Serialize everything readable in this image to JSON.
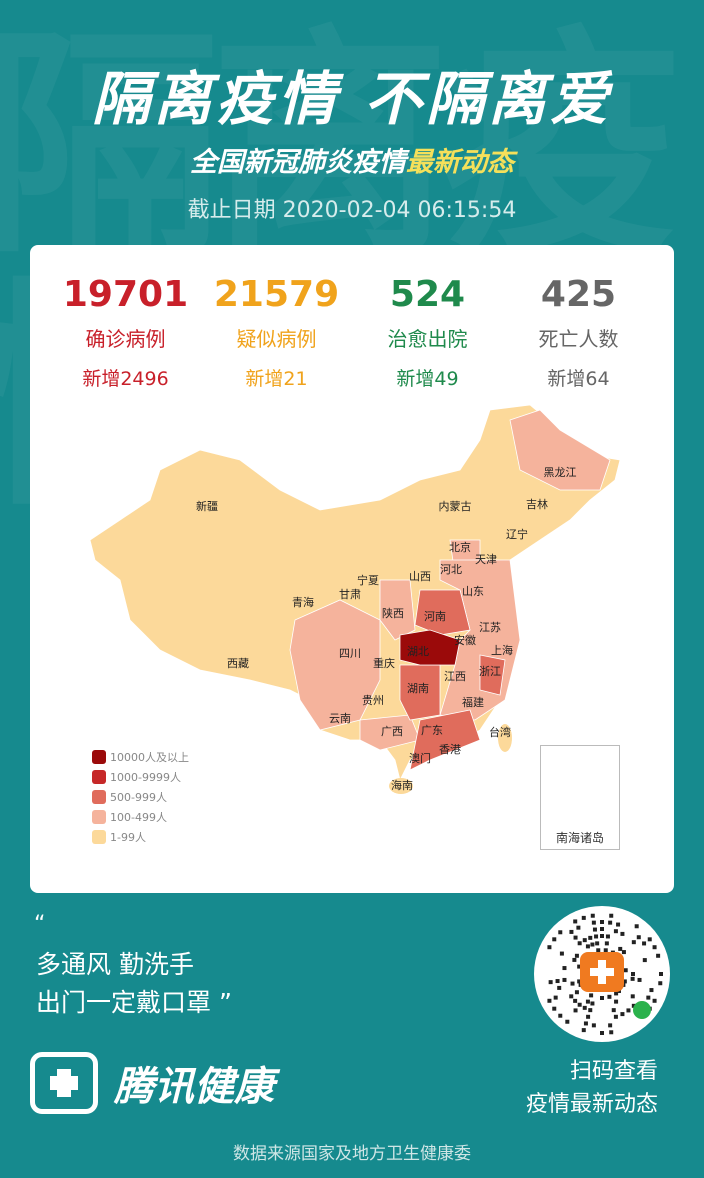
{
  "header": {
    "title": "隔离疫情 不隔离爱",
    "subtitle_a": "全国新冠肺炎疫情",
    "subtitle_b": "最新动态",
    "date": "截止日期 2020-02-04 06:15:54"
  },
  "stats": [
    {
      "value": "19701",
      "label": "确诊病例",
      "delta": "新增2496",
      "color": "#c8202a"
    },
    {
      "value": "21579",
      "label": "疑似病例",
      "delta": "新增21",
      "color": "#f0a31c"
    },
    {
      "value": "524",
      "label": "治愈出院",
      "delta": "新增49",
      "color": "#1f8a4c"
    },
    {
      "value": "425",
      "label": "死亡人数",
      "delta": "新增64",
      "color": "#666666"
    }
  ],
  "legend": [
    {
      "label": "10000人及以上",
      "color": "#9b0a0a"
    },
    {
      "label": "1000-9999人",
      "color": "#c62828"
    },
    {
      "label": "500-999人",
      "color": "#e06c5c"
    },
    {
      "label": "100-499人",
      "color": "#f5b39c"
    },
    {
      "label": "1-99人",
      "color": "#fcd99a"
    }
  ],
  "provinces": [
    {
      "name": "黑龙江",
      "level": 3
    },
    {
      "name": "吉林",
      "level": 4
    },
    {
      "name": "辽宁",
      "level": 4
    },
    {
      "name": "内蒙古",
      "level": 4
    },
    {
      "name": "新疆",
      "level": 4
    },
    {
      "name": "北京",
      "level": 3
    },
    {
      "name": "天津",
      "level": 4
    },
    {
      "name": "河北",
      "level": 3
    },
    {
      "name": "山西",
      "level": 4
    },
    {
      "name": "山东",
      "level": 3
    },
    {
      "name": "宁夏",
      "level": 4
    },
    {
      "name": "甘肃",
      "level": 4
    },
    {
      "name": "青海",
      "level": 4
    },
    {
      "name": "陕西",
      "level": 3
    },
    {
      "name": "河南",
      "level": 2
    },
    {
      "name": "江苏",
      "level": 3
    },
    {
      "name": "安徽",
      "level": 3
    },
    {
      "name": "湖北",
      "level": 0
    },
    {
      "name": "上海",
      "level": 3
    },
    {
      "name": "四川",
      "level": 3
    },
    {
      "name": "重庆",
      "level": 3
    },
    {
      "name": "西藏",
      "level": 4
    },
    {
      "name": "浙江",
      "level": 2
    },
    {
      "name": "江西",
      "level": 3
    },
    {
      "name": "湖南",
      "level": 2
    },
    {
      "name": "贵州",
      "level": 4
    },
    {
      "name": "福建",
      "level": 3
    },
    {
      "name": "云南",
      "level": 3
    },
    {
      "name": "广西",
      "level": 3
    },
    {
      "name": "广东",
      "level": 2
    },
    {
      "name": "台湾",
      "level": 4
    },
    {
      "name": "澳门",
      "level": 4
    },
    {
      "name": "香港",
      "level": 4
    },
    {
      "name": "海南",
      "level": 4
    }
  ],
  "inset_label": "南海诸岛",
  "slogan": {
    "line1": "多通风 勤洗手",
    "line2": "出门一定戴口罩 ”",
    "open_quote": "“"
  },
  "brand": "腾讯健康",
  "scan": {
    "line1": "扫码查看",
    "line2": "疫情最新动态"
  },
  "source": "数据来源国家及地方卫生健康委"
}
